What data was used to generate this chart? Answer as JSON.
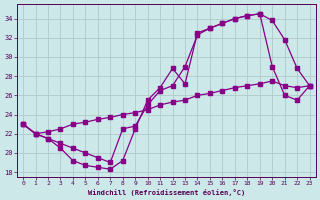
{
  "xlabel": "Windchill (Refroidissement éolien,°C)",
  "xlim": [
    -0.5,
    23.5
  ],
  "ylim": [
    17.5,
    35.5
  ],
  "yticks": [
    18,
    20,
    22,
    24,
    26,
    28,
    30,
    32,
    34
  ],
  "xticks": [
    0,
    1,
    2,
    3,
    4,
    5,
    6,
    7,
    8,
    9,
    10,
    11,
    12,
    13,
    14,
    15,
    16,
    17,
    18,
    19,
    20,
    21,
    22,
    23
  ],
  "bg_color": "#cce8e8",
  "grid_color": "#b0c8c8",
  "line_color": "#880088",
  "line1_x": [
    0,
    1,
    2,
    3,
    4,
    5,
    6,
    7,
    8,
    9,
    10,
    11,
    12,
    13,
    14,
    15,
    16,
    17,
    18,
    19,
    20,
    21,
    22,
    23
  ],
  "line1_y": [
    23.0,
    22.0,
    21.5,
    20.5,
    19.2,
    18.7,
    18.5,
    18.3,
    19.2,
    22.5,
    25.5,
    26.8,
    28.8,
    27.2,
    32.5,
    33.0,
    33.5,
    34.0,
    34.3,
    34.5,
    33.8,
    31.8,
    28.8,
    27.0
  ],
  "line2_x": [
    0,
    1,
    2,
    3,
    4,
    5,
    6,
    7,
    8,
    9,
    10,
    11,
    12,
    13,
    14,
    15,
    16,
    17,
    18,
    19,
    20,
    21,
    22,
    23
  ],
  "line2_y": [
    23.0,
    22.0,
    22.2,
    22.5,
    23.0,
    23.2,
    23.5,
    23.7,
    24.0,
    24.2,
    24.5,
    25.0,
    25.3,
    25.5,
    26.0,
    26.2,
    26.5,
    26.8,
    27.0,
    27.2,
    27.5,
    27.0,
    26.8,
    27.0
  ],
  "line3_x": [
    0,
    1,
    2,
    3,
    4,
    5,
    6,
    7,
    8,
    9,
    10,
    11,
    12,
    13,
    14,
    15,
    16,
    17,
    18,
    19,
    20,
    21,
    22,
    23
  ],
  "line3_y": [
    23.0,
    22.0,
    21.5,
    21.0,
    20.5,
    20.0,
    19.5,
    19.0,
    22.5,
    22.8,
    25.0,
    26.5,
    27.0,
    29.0,
    32.3,
    33.0,
    33.5,
    34.0,
    34.3,
    34.5,
    29.0,
    26.0,
    25.5,
    27.0
  ]
}
